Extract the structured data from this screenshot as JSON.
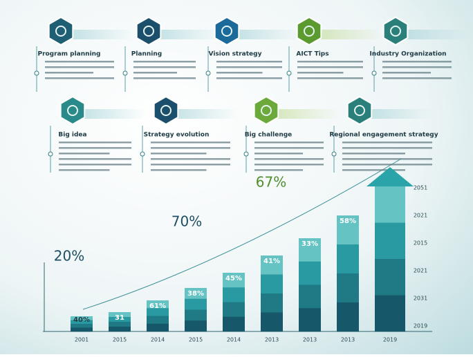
{
  "cards": [
    {
      "title": "Program planning"
    },
    {
      "title": "Planning"
    },
    {
      "title": "Vision strategy"
    },
    {
      "title": "AICT Tips"
    },
    {
      "title": "Industry Organization"
    },
    {
      "title": "Big idea"
    },
    {
      "title": "Strategy evolution"
    },
    {
      "title": "Big challenge"
    },
    {
      "title": "Regional engagement strategy"
    }
  ],
  "highlights": [
    "20%",
    "70%",
    "67%"
  ],
  "bars": [
    {
      "label": "40%",
      "year": "2001"
    },
    {
      "label": "31",
      "year": "2015"
    },
    {
      "label": "61%",
      "year": "2014"
    },
    {
      "label": "38%",
      "year": "2015"
    },
    {
      "label": "45%",
      "year": "2014"
    },
    {
      "label": "41%",
      "year": "2013"
    },
    {
      "label": "33%",
      "year": "2013"
    },
    {
      "label": "58%",
      "year": "2013"
    },
    {
      "label": "",
      "year": "2019"
    }
  ],
  "right_axis": [
    "2051",
    "2021",
    "2015",
    "2021",
    "2031",
    "2019"
  ]
}
